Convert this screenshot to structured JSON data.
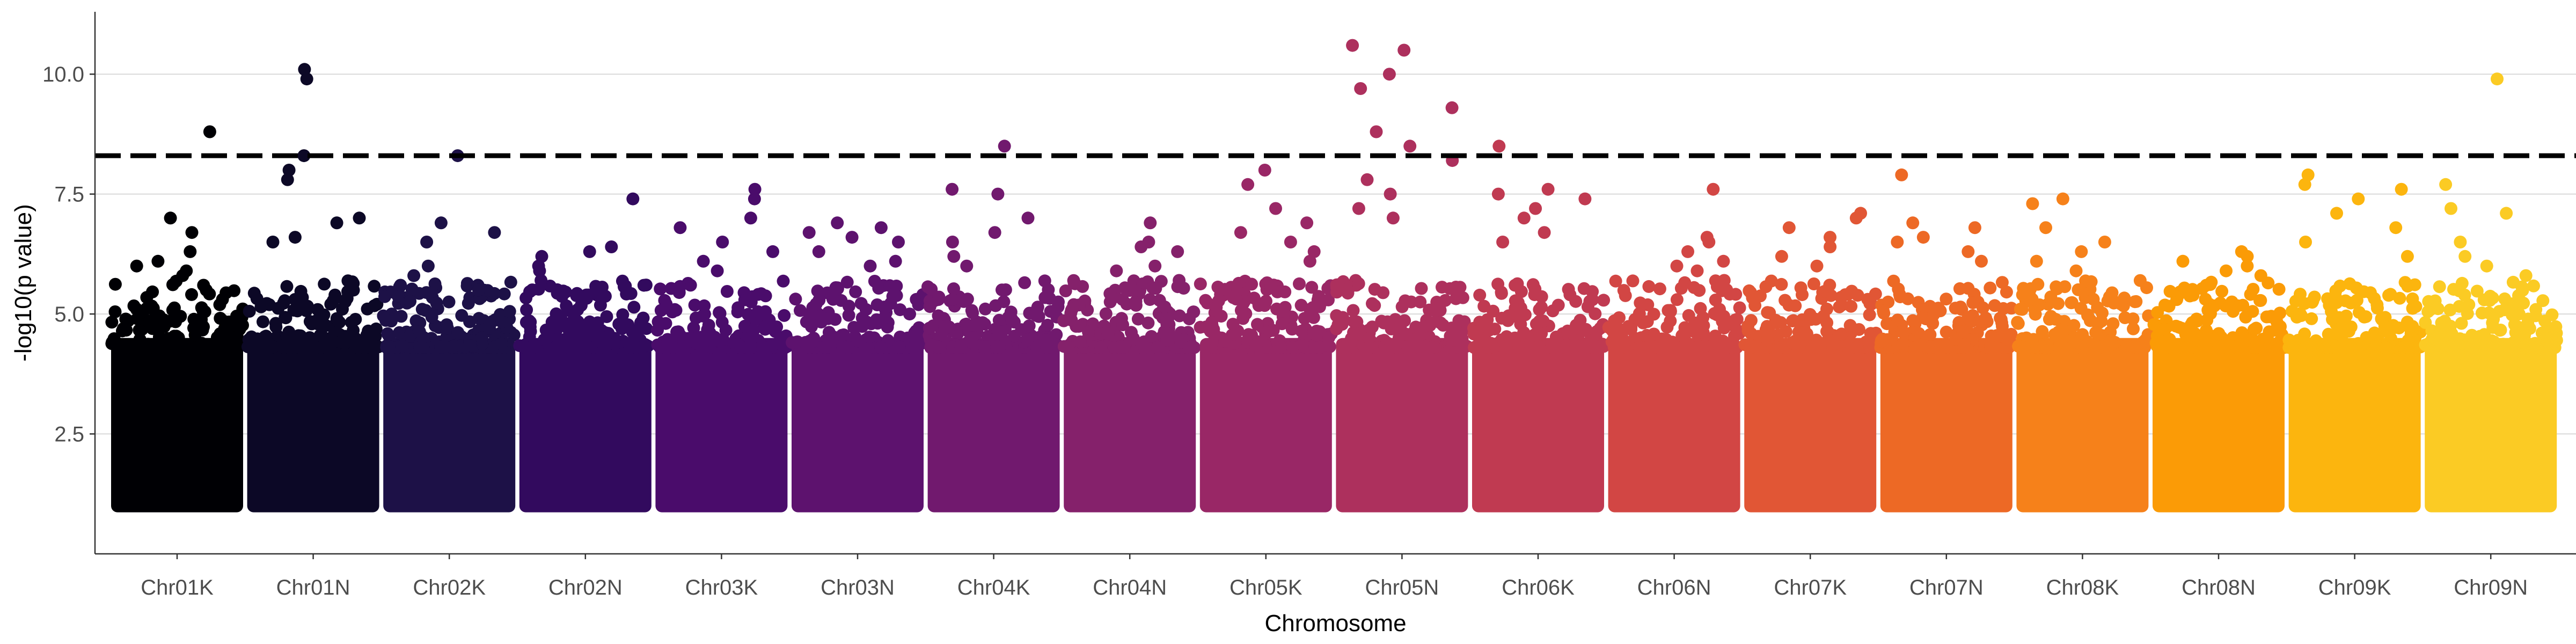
{
  "chart_data": {
    "type": "scatter",
    "title": "",
    "xlabel": "Chromosome",
    "ylabel": "-log10(p value)",
    "ylim": [
      0.0,
      11.3
    ],
    "yticks": [
      2.5,
      5.0,
      7.5,
      10.0
    ],
    "grid": "horizontal major lines",
    "legend": "none",
    "threshold": 8.3,
    "min_plotted": 1.0,
    "categories": [
      "Chr01K",
      "Chr01N",
      "Chr02K",
      "Chr02N",
      "Chr03K",
      "Chr03N",
      "Chr04K",
      "Chr04N",
      "Chr05K",
      "Chr05N",
      "Chr06K",
      "Chr06N",
      "Chr07K",
      "Chr07N",
      "Chr08K",
      "Chr08N",
      "Chr09K",
      "Chr09N"
    ],
    "colors": [
      "#000004",
      "#0c0826",
      "#1d1147",
      "#320a5e",
      "#4a0c6b",
      "#5d126e",
      "#71196e",
      "#85216b",
      "#992766",
      "#ad305d",
      "#c03a51",
      "#d24644",
      "#e15635",
      "#ed6925",
      "#f6811a",
      "#fb9b06",
      "#fcb50e",
      "#fbcb24"
    ],
    "series": [
      {
        "name": "Chr01K",
        "top_points": [
          8.8,
          7.0,
          6.7,
          6.3,
          6.1,
          6.0,
          5.9,
          5.8,
          5.5
        ]
      },
      {
        "name": "Chr01N",
        "top_points": [
          10.1,
          9.9,
          8.3,
          8.0,
          7.8,
          7.0,
          6.9,
          6.6,
          6.5
        ]
      },
      {
        "name": "Chr02K",
        "top_points": [
          8.3,
          6.9,
          6.7,
          6.5,
          6.0,
          5.8,
          5.6,
          5.5
        ]
      },
      {
        "name": "Chr02N",
        "top_points": [
          7.4,
          6.4,
          6.3,
          6.2,
          6.0,
          5.9,
          5.7
        ]
      },
      {
        "name": "Chr03K",
        "top_points": [
          7.6,
          7.4,
          7.0,
          6.8,
          6.5,
          6.3,
          6.1,
          5.9
        ]
      },
      {
        "name": "Chr03N",
        "top_points": [
          6.9,
          6.8,
          6.7,
          6.6,
          6.5,
          6.3,
          6.1,
          6.0
        ]
      },
      {
        "name": "Chr04K",
        "top_points": [
          8.5,
          7.6,
          7.5,
          7.0,
          6.7,
          6.5,
          6.2,
          6.0
        ]
      },
      {
        "name": "Chr04N",
        "top_points": [
          6.9,
          6.5,
          6.4,
          6.3,
          6.0,
          5.9,
          5.7
        ]
      },
      {
        "name": "Chr05K",
        "top_points": [
          8.0,
          7.7,
          7.2,
          6.9,
          6.7,
          6.5,
          6.3,
          6.1
        ]
      },
      {
        "name": "Chr05N",
        "top_points": [
          10.6,
          10.5,
          10.0,
          9.7,
          9.3,
          8.8,
          8.5,
          8.2,
          7.8,
          7.5,
          7.2,
          7.0
        ]
      },
      {
        "name": "Chr06K",
        "top_points": [
          8.5,
          7.6,
          7.5,
          7.4,
          7.2,
          7.0,
          6.7,
          6.5
        ]
      },
      {
        "name": "Chr06N",
        "top_points": [
          7.6,
          6.6,
          6.5,
          6.3,
          6.1,
          6.0,
          5.9,
          5.7
        ]
      },
      {
        "name": "Chr07K",
        "top_points": [
          7.1,
          7.0,
          6.8,
          6.6,
          6.4,
          6.2,
          6.0
        ]
      },
      {
        "name": "Chr07N",
        "top_points": [
          7.9,
          6.9,
          6.8,
          6.6,
          6.5,
          6.3,
          6.1
        ]
      },
      {
        "name": "Chr08K",
        "top_points": [
          7.4,
          7.3,
          6.8,
          6.5,
          6.3,
          6.1,
          5.9
        ]
      },
      {
        "name": "Chr08N",
        "top_points": [
          6.3,
          6.2,
          6.1,
          6.0,
          5.9,
          5.8,
          5.6
        ]
      },
      {
        "name": "Chr09K",
        "top_points": [
          7.9,
          7.7,
          7.6,
          7.4,
          7.1,
          6.8,
          6.5,
          6.2
        ]
      },
      {
        "name": "Chr09N",
        "top_points": [
          9.9,
          7.7,
          7.2,
          7.1,
          6.5,
          6.2,
          6.0,
          5.8
        ]
      }
    ]
  }
}
